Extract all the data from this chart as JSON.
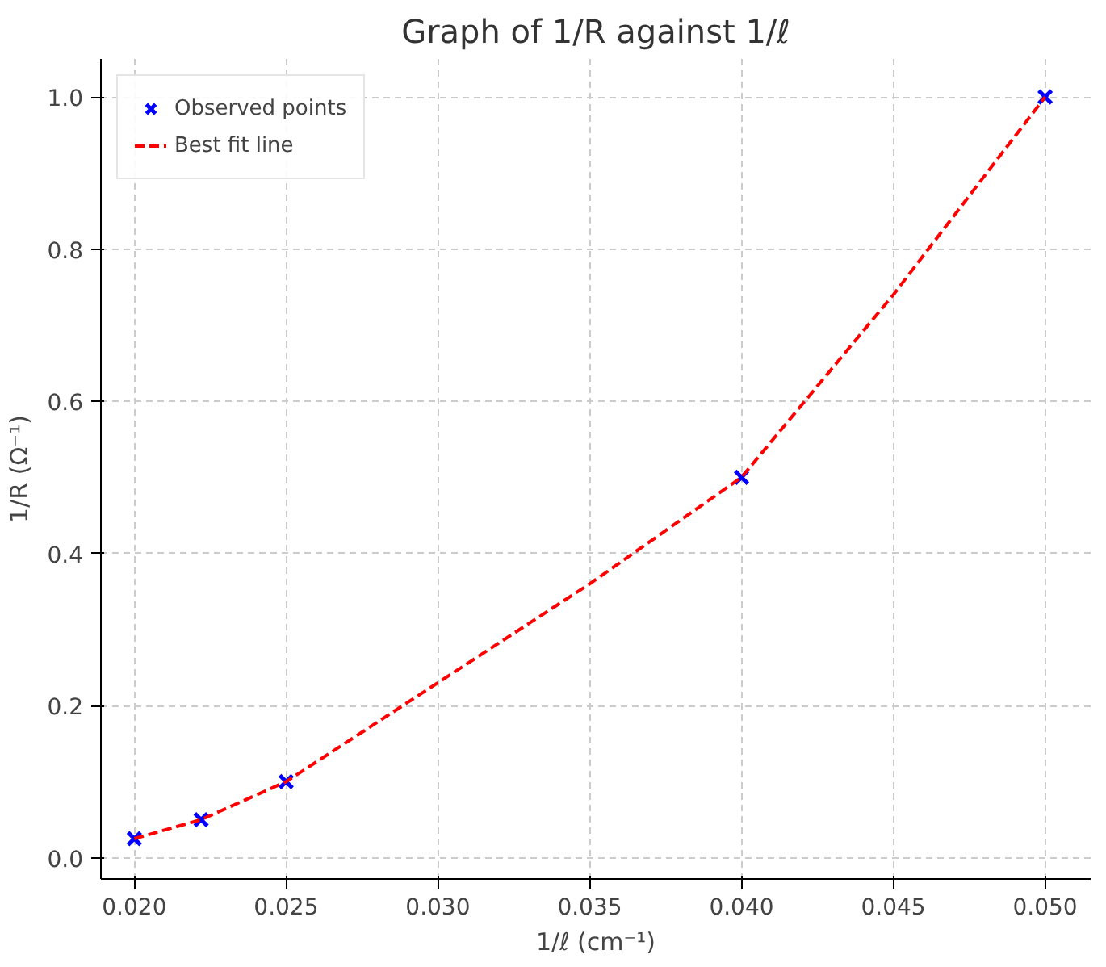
{
  "chart_data": {
    "type": "scatter",
    "title": "Graph of 1/R against 1/ℓ",
    "xlabel": "1/ℓ (cm⁻¹)",
    "ylabel": "1/R (Ω⁻¹)",
    "xlim": [
      0.0189,
      0.0515
    ],
    "ylim": [
      -0.028,
      1.05
    ],
    "xticks": [
      {
        "value": 0.02,
        "label": "0.020"
      },
      {
        "value": 0.025,
        "label": "0.025"
      },
      {
        "value": 0.03,
        "label": "0.030"
      },
      {
        "value": 0.035,
        "label": "0.035"
      },
      {
        "value": 0.04,
        "label": "0.040"
      },
      {
        "value": 0.045,
        "label": "0.045"
      },
      {
        "value": 0.05,
        "label": "0.050"
      }
    ],
    "yticks": [
      {
        "value": 0,
        "label": "0.0"
      },
      0.2,
      0.4,
      0.6,
      0.8,
      {
        "value": 1,
        "label": "1.0"
      }
    ],
    "grid": true,
    "legend": "top left",
    "series": [
      {
        "name": "Observed points",
        "marker": "cross",
        "color": "#0000ff",
        "x": [
          0.02,
          0.0222,
          0.025,
          0.04,
          0.05
        ],
        "values": [
          0.025,
          0.05,
          0.1,
          0.5,
          1.0
        ]
      },
      {
        "name": "Best fit line",
        "type": "line",
        "line_style": "dashed",
        "color": "#ff0000",
        "x": [
          0.02,
          0.0222,
          0.025,
          0.03,
          0.035,
          0.04,
          0.045,
          0.05
        ],
        "values": [
          0.025,
          0.05,
          0.1,
          0.23,
          0.36,
          0.5,
          0.74,
          1.0
        ]
      }
    ]
  }
}
